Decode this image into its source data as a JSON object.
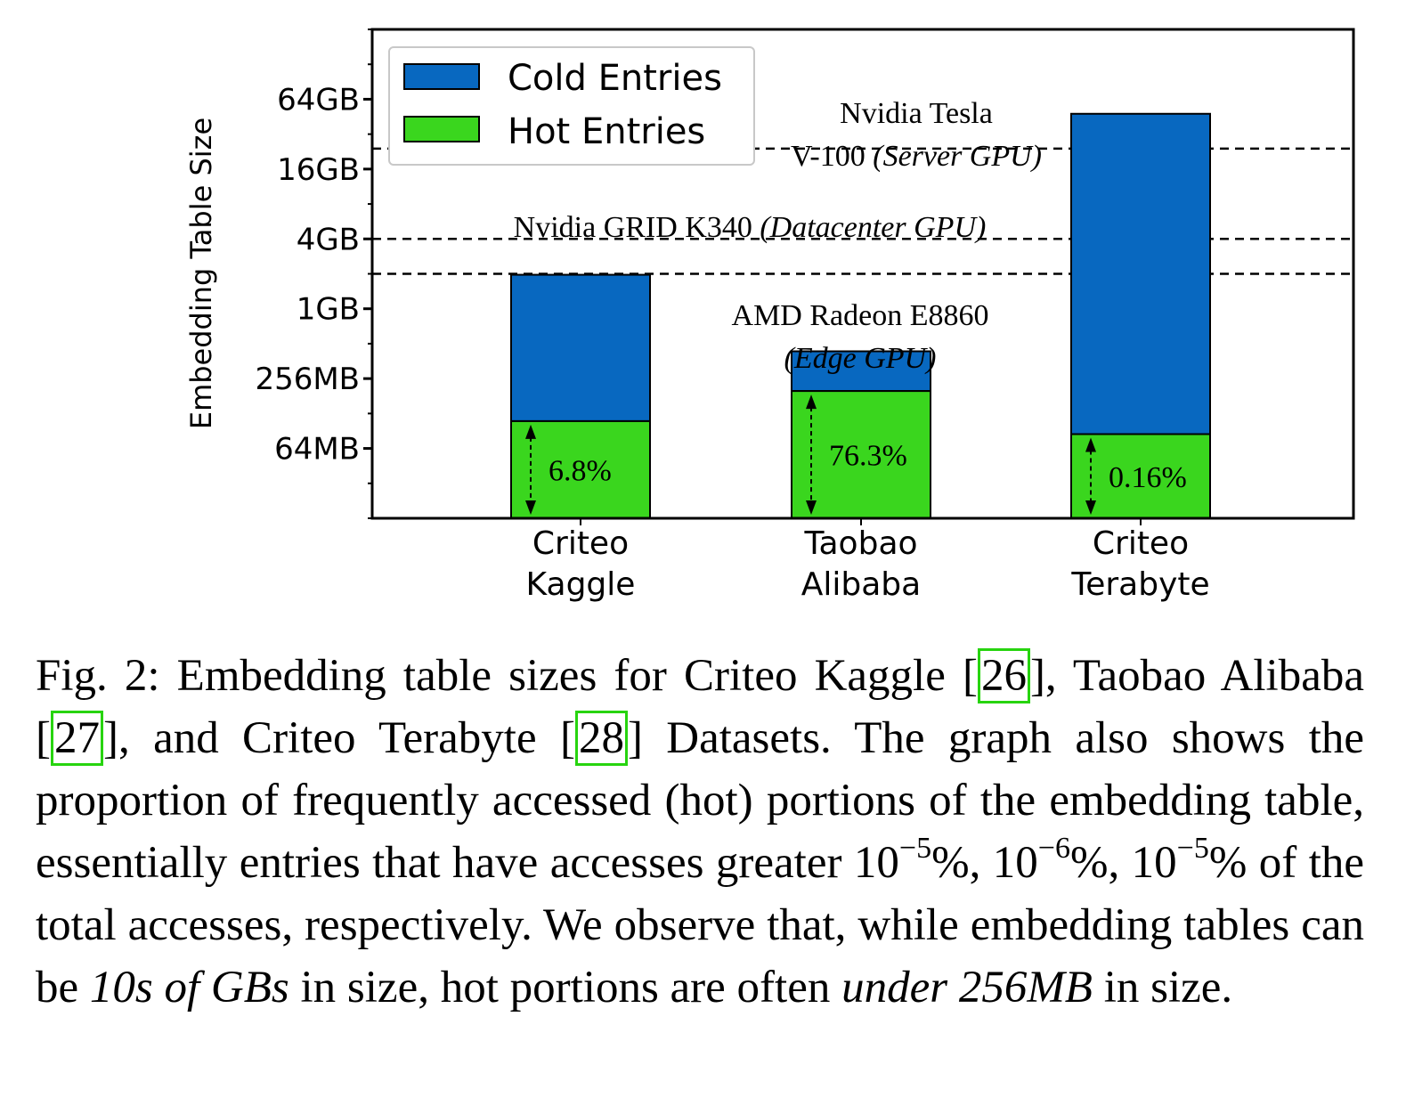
{
  "chart_data": {
    "type": "bar",
    "stacked": true,
    "ylabel": "Embedding Table Size",
    "yscale": "log2",
    "ytick_labels": [
      "64MB",
      "256MB",
      "1GB",
      "4GB",
      "16GB",
      "64GB"
    ],
    "ytick_values_mb": [
      64,
      256,
      1024,
      4096,
      16384,
      65536
    ],
    "ylim_mb": [
      16,
      262144
    ],
    "categories": [
      [
        "Criteo",
        "Kaggle"
      ],
      [
        "Taobao",
        "Alibaba"
      ],
      [
        "Criteo",
        "Terabyte"
      ]
    ],
    "series": [
      {
        "name": "Hot Entries",
        "color": "#3ad61e",
        "values_mb": [
          110,
          200,
          85
        ]
      },
      {
        "name": "Cold Entries",
        "color": "#0868c0",
        "values_mb": [
          1900,
          240,
          49000
        ]
      }
    ],
    "hot_percent_labels": [
      "6.8%",
      "76.3%",
      "0.16%"
    ],
    "reference_lines": [
      {
        "value_mb": 24576,
        "lines": [
          [
            {
              "t": "Nvidia Tesla",
              "i": false
            }
          ],
          [
            {
              "t": "V-100 ",
              "i": false
            },
            {
              "t": "(Server GPU)",
              "i": true
            }
          ]
        ]
      },
      {
        "value_mb": 4096,
        "lines": [
          [
            {
              "t": "Nvidia GRID K340 ",
              "i": false
            },
            {
              "t": "(Datacenter GPU)",
              "i": true
            }
          ]
        ]
      },
      {
        "value_mb": 2048,
        "lines": [
          [
            {
              "t": "AMD Radeon E8860",
              "i": false
            }
          ],
          [
            {
              "t": "(Edge GPU)",
              "i": true
            }
          ]
        ]
      }
    ],
    "legend_position": "top-left"
  },
  "caption": {
    "prefix": "Fig. 2: Embedding table sizes for Criteo Kaggle [",
    "ref1": "26",
    "t2": "], Taobao Alibaba [",
    "ref2": "27",
    "t3": "], and Criteo Terabyte [",
    "ref3": "28",
    "t4": "] Datasets. The graph also shows the proportion of frequently accessed (hot) portions of the embedding table, essentially entries that have accesses greater 10",
    "exp1": "−5",
    "t5": "%, 10",
    "exp2": "−6",
    "t6": "%, 10",
    "exp3": "−5",
    "t7": "% of the total accesses, respectively. We observe that, while embedding tables can be ",
    "em1": "10s of GBs",
    "t8": " in size, hot portions are often ",
    "em2": "under 256MB",
    "t9": " in size."
  }
}
